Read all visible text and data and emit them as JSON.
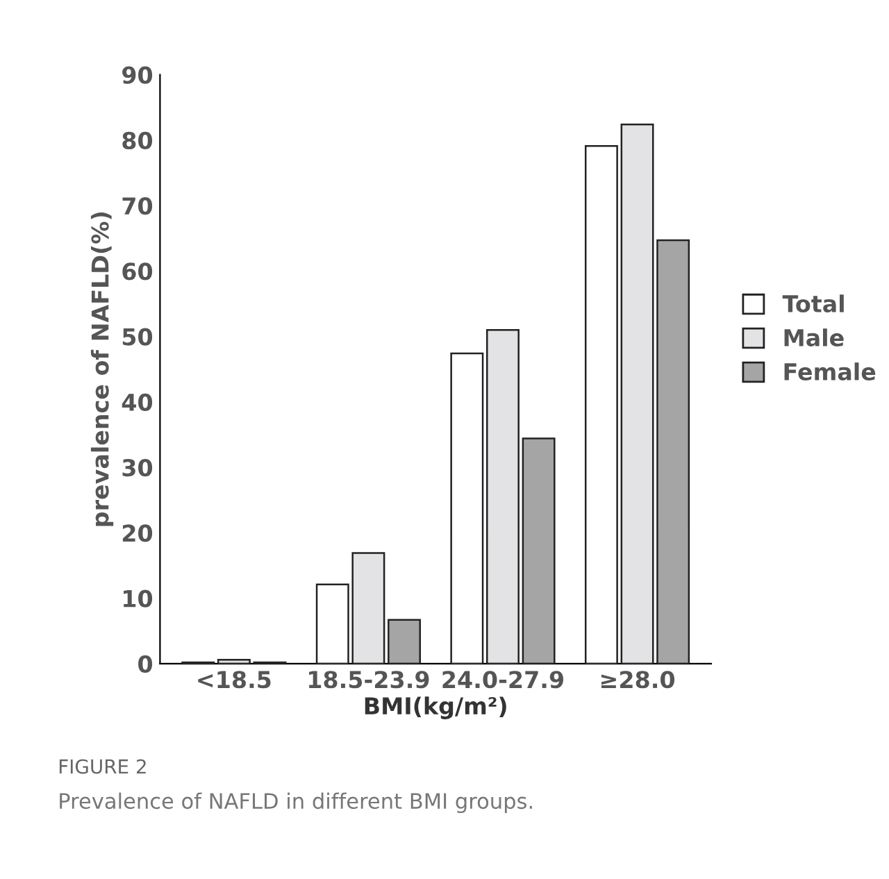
{
  "chart_data": {
    "type": "bar",
    "categories": [
      "<18.5",
      "18.5-23.9",
      "24.0-27.9",
      "≥28.0"
    ],
    "series": [
      {
        "name": "Total",
        "color": "#ffffff",
        "values": [
          0.2,
          12.1,
          47.4,
          79.1
        ]
      },
      {
        "name": "Male",
        "color": "#e3e3e5",
        "values": [
          0.6,
          16.9,
          51.0,
          82.4
        ]
      },
      {
        "name": "Female",
        "color": "#a5a5a5",
        "values": [
          0.2,
          6.7,
          34.4,
          64.7
        ]
      }
    ],
    "xlabel": "BMI(kg/m²)",
    "ylabel": "prevalence of NAFLD(%)",
    "ylim": [
      0,
      90
    ],
    "yticks": [
      0,
      10,
      20,
      30,
      40,
      50,
      60,
      70,
      80,
      90
    ],
    "grid": false,
    "legend": "right",
    "annotations": [
      "FIGURE 2",
      "Prevalence of NAFLD in different BMI groups."
    ]
  }
}
